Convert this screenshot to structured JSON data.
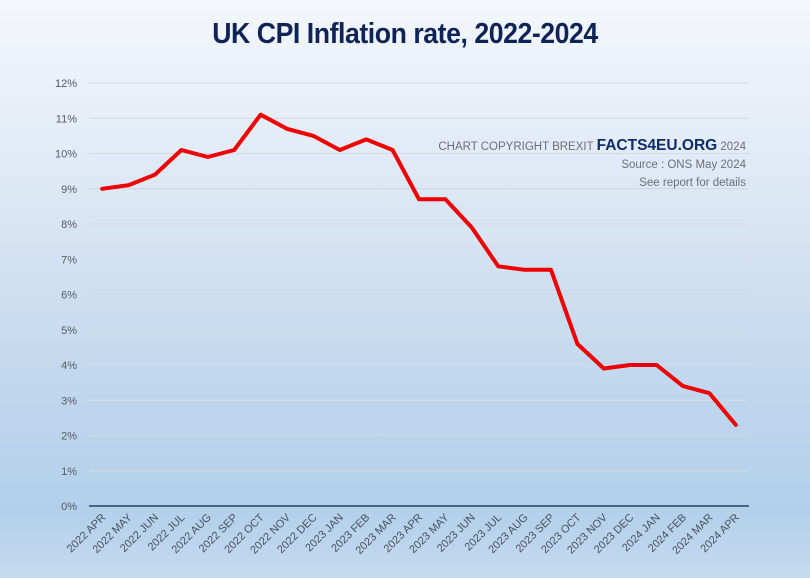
{
  "chart_data": {
    "type": "line",
    "title": "UK CPI Inflation rate, 2022-2024",
    "xlabel": "",
    "ylabel": "",
    "ylim": [
      0,
      12
    ],
    "yticks": [
      "0%",
      "1%",
      "2%",
      "3%",
      "4%",
      "5%",
      "6%",
      "7%",
      "8%",
      "9%",
      "10%",
      "11%",
      "12%"
    ],
    "grid": true,
    "categories": [
      "2022 APR",
      "2022 MAY",
      "2022 JUN",
      "2022 JUL",
      "2022 AUG",
      "2022 SEP",
      "2022 OCT",
      "2022 NOV",
      "2022 DEC",
      "2023 JAN",
      "2023 FEB",
      "2023 MAR",
      "2023 APR",
      "2023 MAY",
      "2023 JUN",
      "2023 JUL",
      "2023 AUG",
      "2023 SEP",
      "2023 OCT",
      "2023 NOV",
      "2023 DEC",
      "2024 JAN",
      "2024 FEB",
      "2024 MAR",
      "2024 APR"
    ],
    "series": [
      {
        "name": "UK CPI Inflation rate",
        "color": "#ee0000",
        "values": [
          9.0,
          9.1,
          9.4,
          10.1,
          9.9,
          10.1,
          11.1,
          10.7,
          10.5,
          10.1,
          10.4,
          10.1,
          8.7,
          8.7,
          7.9,
          6.8,
          6.7,
          6.7,
          4.6,
          3.9,
          4.0,
          4.0,
          3.4,
          3.2,
          2.3
        ]
      }
    ],
    "annotations": {
      "copyright_prefix": "CHART COPYRIGHT BREXIT",
      "brand": "FACTS4EU.ORG",
      "copyright_year": "2024",
      "source": "Source : ONS May 2024",
      "note": "See report for details"
    }
  },
  "colors": {
    "title": "#0e2456",
    "line": "#ee0000",
    "axis": "#0e2456",
    "grid": "#d3dae4"
  }
}
